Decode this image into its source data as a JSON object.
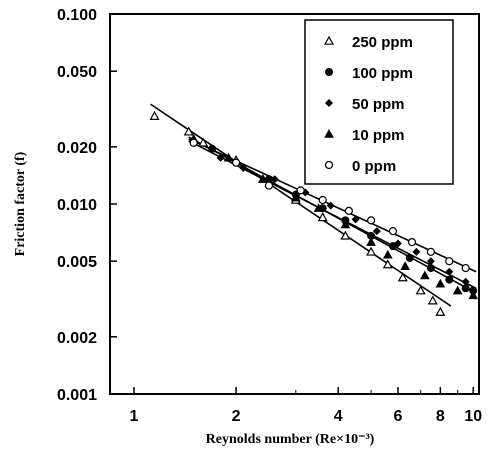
{
  "chart_data": {
    "type": "scatter",
    "xlabel": "Reynolds number (Re×10⁻³)",
    "ylabel": "Friction factor (f)",
    "x_scale": "log",
    "y_scale": "log",
    "xlim": [
      0.85,
      10.4
    ],
    "ylim": [
      0.001,
      0.1
    ],
    "x_ticks": [
      1,
      2,
      4,
      6,
      8,
      10
    ],
    "x_tick_labels": [
      "1",
      "2",
      "4",
      "6",
      "8",
      "10"
    ],
    "y_ticks": [
      0.001,
      0.002,
      0.005,
      0.01,
      0.02,
      0.05,
      0.1
    ],
    "y_tick_labels": [
      "0.001",
      "0.002",
      "0.005",
      "0.010",
      "0.020",
      "0.050",
      "0.100"
    ],
    "legend_position": "top-right",
    "series": [
      {
        "name": "250 ppm",
        "marker": "open-triangle",
        "x": [
          1.15,
          1.45,
          1.6,
          2.0,
          2.4,
          3.0,
          3.6,
          4.2,
          5.0,
          5.6,
          6.2,
          7.0,
          7.6,
          8.0
        ],
        "y": [
          0.029,
          0.024,
          0.021,
          0.017,
          0.0135,
          0.0105,
          0.0085,
          0.0068,
          0.0056,
          0.0048,
          0.0041,
          0.0035,
          0.0031,
          0.0027
        ]
      },
      {
        "name": "100 ppm",
        "marker": "filled-circle",
        "x": [
          1.5,
          1.7,
          2.0,
          2.5,
          3.0,
          3.6,
          4.2,
          5.0,
          5.8,
          6.5,
          7.5,
          8.5,
          9.5,
          10.0
        ],
        "y": [
          0.021,
          0.0195,
          0.0165,
          0.0135,
          0.0112,
          0.0095,
          0.0082,
          0.0068,
          0.006,
          0.0052,
          0.0046,
          0.004,
          0.0036,
          0.0035
        ]
      },
      {
        "name": "50 ppm",
        "marker": "filled-diamond",
        "x": [
          1.5,
          1.8,
          2.1,
          2.6,
          3.2,
          3.8,
          4.5,
          5.2,
          6.0,
          6.8,
          7.5,
          8.5,
          9.5
        ],
        "y": [
          0.021,
          0.0175,
          0.0155,
          0.0135,
          0.0115,
          0.0098,
          0.0083,
          0.0072,
          0.0062,
          0.0056,
          0.005,
          0.0044,
          0.0039
        ]
      },
      {
        "name": "10 ppm",
        "marker": "filled-triangle",
        "x": [
          1.5,
          1.9,
          2.4,
          3.0,
          3.5,
          4.2,
          5.0,
          5.6,
          6.3,
          7.2,
          8.0,
          9.0,
          10.0
        ],
        "y": [
          0.022,
          0.0175,
          0.0135,
          0.0108,
          0.0095,
          0.0078,
          0.0063,
          0.0054,
          0.0047,
          0.0042,
          0.0038,
          0.0035,
          0.0033
        ]
      },
      {
        "name": "0 ppm",
        "marker": "open-circle",
        "x": [
          1.5,
          2.0,
          2.5,
          3.1,
          3.6,
          4.3,
          5.0,
          5.8,
          6.6,
          7.5,
          8.5,
          9.5
        ],
        "y": [
          0.021,
          0.0165,
          0.0125,
          0.0118,
          0.0105,
          0.0092,
          0.0082,
          0.0072,
          0.0063,
          0.0056,
          0.005,
          0.0046
        ]
      }
    ],
    "fit_lines": [
      {
        "x": [
          1.12,
          8.6
        ],
        "y": [
          0.0335,
          0.0029
        ]
      },
      {
        "x": [
          1.45,
          10.2
        ],
        "y": [
          0.0225,
          0.0034
        ]
      },
      {
        "x": [
          1.45,
          10.2
        ],
        "y": [
          0.0215,
          0.0036
        ]
      },
      {
        "x": [
          1.45,
          10.2
        ],
        "y": [
          0.022,
          0.0044
        ]
      }
    ]
  }
}
